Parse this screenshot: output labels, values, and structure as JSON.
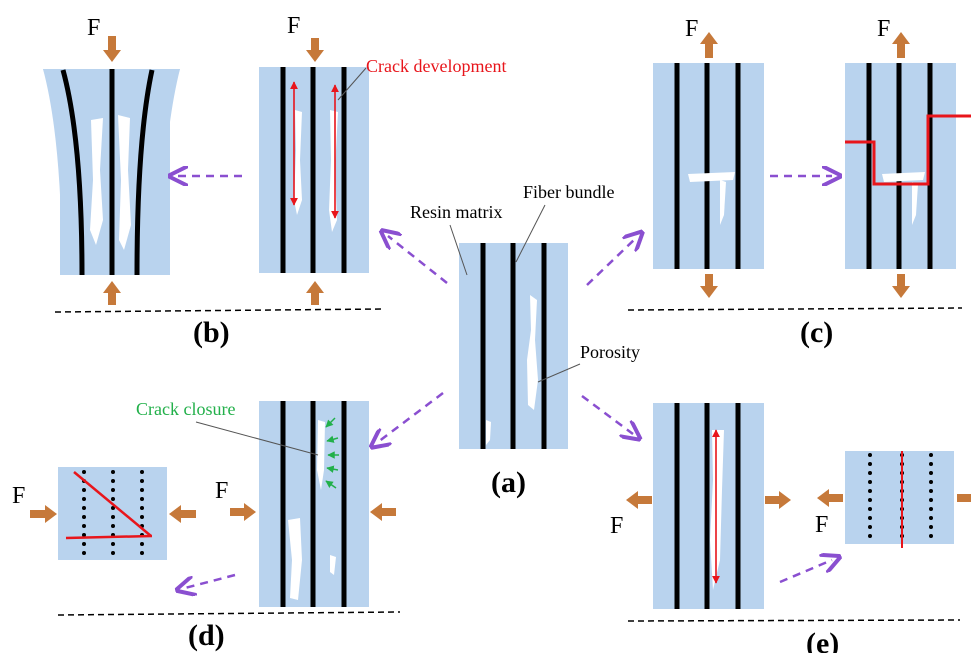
{
  "labels": {
    "resin_matrix": "Resin matrix",
    "fiber_bundle": "Fiber bundle",
    "porosity": "Porosity",
    "crack_development": "Crack development",
    "crack_closure": "Crack closure",
    "force": "F"
  },
  "panels": {
    "a": "(a)",
    "b": "(b)",
    "c": "(c)",
    "d": "(d)",
    "e": "(e)"
  },
  "colors": {
    "matrix": "#b9d3ee",
    "fiber": "#000000",
    "pore": "#ffffff",
    "force_arrow": "#c6793a",
    "flow_arrow": "#8a4fd0",
    "crack": "#e8151b",
    "closure": "#22b04a"
  }
}
